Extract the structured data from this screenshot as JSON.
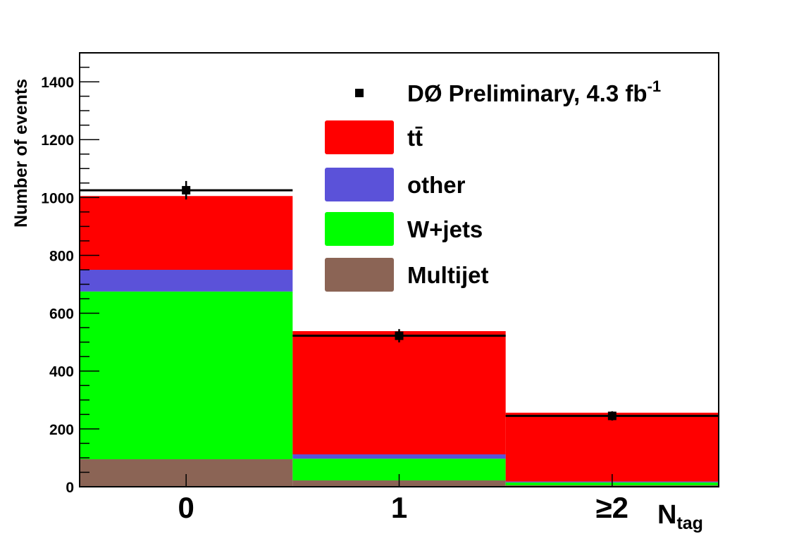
{
  "chart_data": {
    "type": "bar",
    "stacked": true,
    "categories": [
      "0",
      "1",
      "≥2"
    ],
    "xlabel": "N",
    "xlabel_subscript": "tag",
    "ylabel": "Number of events",
    "ylim": [
      0,
      1500
    ],
    "yticks": [
      0,
      200,
      400,
      600,
      800,
      1000,
      1200,
      1400
    ],
    "series": [
      {
        "name": "Multijet",
        "color": "#8b6455",
        "values": [
          95,
          22,
          5
        ]
      },
      {
        "name": "W+jets",
        "color": "#00ff00",
        "values": [
          580,
          75,
          10
        ]
      },
      {
        "name": "other",
        "color": "#5b52d9",
        "values": [
          75,
          15,
          3
        ]
      },
      {
        "name": "tt̄",
        "color": "#ff0000",
        "values": [
          255,
          426,
          238
        ]
      }
    ],
    "data_points": {
      "name": "DØ Preliminary, 4.3 fb",
      "name_superscript": "-1",
      "values": [
        1025,
        522,
        245
      ],
      "errors": [
        32,
        23,
        16
      ]
    },
    "legend": {
      "position": "top-right",
      "entries": [
        {
          "label": "DØ Preliminary, 4.3 fb",
          "superscript": "-1",
          "marker": "point"
        },
        {
          "label": "tt̄",
          "marker": "box",
          "color": "#ff0000"
        },
        {
          "label": "other",
          "marker": "box",
          "color": "#5b52d9"
        },
        {
          "label": "W+jets",
          "marker": "box",
          "color": "#00ff00"
        },
        {
          "label": "Multijet",
          "marker": "box",
          "color": "#8b6455"
        }
      ]
    }
  }
}
